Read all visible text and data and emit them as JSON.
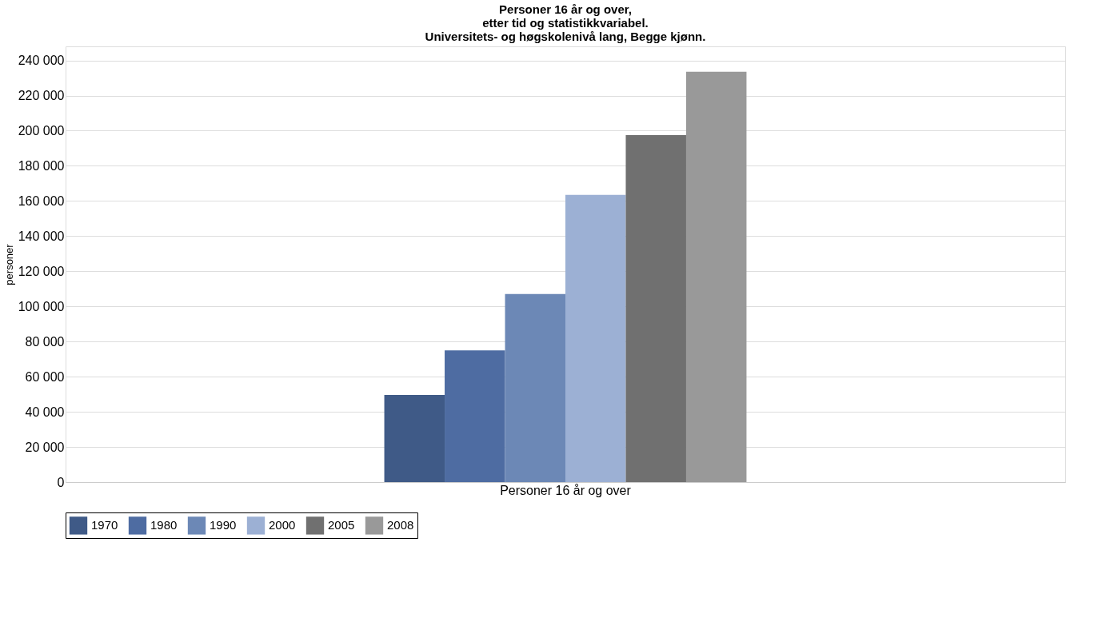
{
  "chart_data": {
    "type": "bar",
    "title": "Personer 16 år og over,\netter tid og statistikkvariabel.\nUniversitets- og høgskolenivå lang, Begge kjønn.",
    "ylabel": "personer",
    "categories": [
      "Personer 16 år og over"
    ],
    "series": [
      {
        "name": "1970",
        "color": "#3f5a87",
        "values": [
          49600
        ]
      },
      {
        "name": "1980",
        "color": "#4e6ca2",
        "values": [
          75000
        ]
      },
      {
        "name": "1990",
        "color": "#6c88b6",
        "values": [
          107000
        ]
      },
      {
        "name": "2000",
        "color": "#9cb0d4",
        "values": [
          163500
        ]
      },
      {
        "name": "2005",
        "color": "#707070",
        "values": [
          197500
        ]
      },
      {
        "name": "2008",
        "color": "#999999",
        "values": [
          233600
        ]
      }
    ],
    "ylim": [
      0,
      248000
    ],
    "yticks": [
      0,
      20000,
      40000,
      60000,
      80000,
      100000,
      120000,
      140000,
      160000,
      180000,
      200000,
      220000,
      240000
    ],
    "grid": "y",
    "legend": "bottom"
  }
}
